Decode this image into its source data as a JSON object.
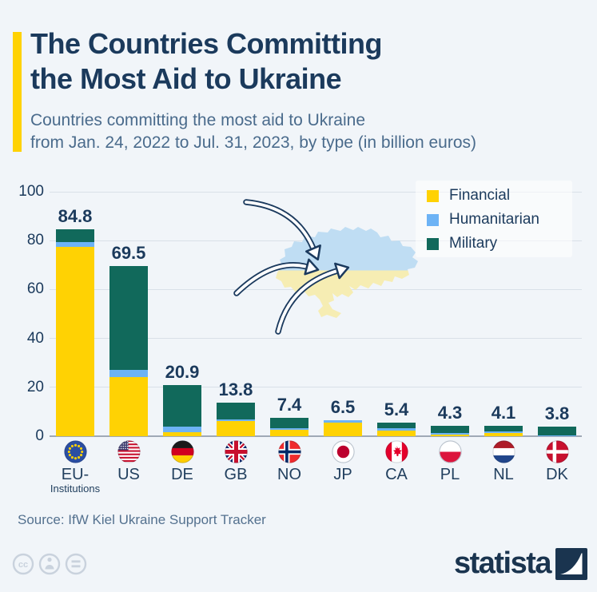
{
  "header": {
    "title_line1": "The Countries Committing",
    "title_line2": "the Most Aid to Ukraine",
    "subtitle_line1": "Countries committing the most aid to Ukraine",
    "subtitle_line2": "from Jan. 24, 2022 to Jul. 31, 2023, by type (in billion euros)"
  },
  "chart_data": {
    "type": "bar",
    "stacked": true,
    "title": "Countries committing the most aid to Ukraine from Jan. 24, 2022 to Jul. 31, 2023, by type (in billion euros)",
    "unit": "billion euros",
    "categories": [
      {
        "label": "EU-",
        "sublabel": "Institutions",
        "flag": "eu"
      },
      {
        "label": "US",
        "sublabel": "",
        "flag": "us"
      },
      {
        "label": "DE",
        "sublabel": "",
        "flag": "de"
      },
      {
        "label": "GB",
        "sublabel": "",
        "flag": "gb"
      },
      {
        "label": "NO",
        "sublabel": "",
        "flag": "no"
      },
      {
        "label": "JP",
        "sublabel": "",
        "flag": "jp"
      },
      {
        "label": "CA",
        "sublabel": "",
        "flag": "ca"
      },
      {
        "label": "PL",
        "sublabel": "",
        "flag": "pl"
      },
      {
        "label": "NL",
        "sublabel": "",
        "flag": "nl"
      },
      {
        "label": "DK",
        "sublabel": "",
        "flag": "dk"
      }
    ],
    "totals": [
      84.8,
      69.5,
      20.9,
      13.8,
      7.4,
      6.5,
      5.4,
      4.3,
      4.1,
      3.8
    ],
    "series": [
      {
        "name": "Financial",
        "color": "#FFD203",
        "values": [
          77.3,
          24.1,
          1.6,
          6.2,
          2.6,
          5.5,
          2.3,
          0.7,
          1.3,
          0
        ]
      },
      {
        "name": "Humanitarian",
        "color": "#6DB3F5",
        "values": [
          2.1,
          3.1,
          2.3,
          0.6,
          0.8,
          1.0,
          1.1,
          0.7,
          0.7,
          0.4
        ]
      },
      {
        "name": "Military",
        "color": "#11695B",
        "values": [
          5.4,
          42.3,
          17.0,
          7.0,
          4.0,
          0,
          2.0,
          2.9,
          2.1,
          3.4
        ]
      }
    ],
    "y_ticks": [
      0,
      20,
      40,
      60,
      80,
      100
    ],
    "ylim": [
      0,
      100
    ],
    "grid": true,
    "legend_position": "top-right"
  },
  "footer": {
    "source": "Source: IfW Kiel Ukraine Support Tracker",
    "brand_text": "statista"
  },
  "icons": {
    "map_illustration": "ukraine-map-with-aid-arrows",
    "license_icons": [
      "cc-icon",
      "attribution-person-icon",
      "equals-icon"
    ],
    "brand_icon": "statista-logo"
  },
  "colors": {
    "background": "#F1F5F9",
    "title": "#1B3A5C",
    "subtitle": "#4A6B8C",
    "accent_bar": "#FFD203",
    "grid": "#D9E0E8",
    "axis": "#9FA9B6",
    "map_blue": "#BFDDF3",
    "map_yellow": "#F6EDB3",
    "arrow": "#1B3A5E",
    "source_text": "#54718F",
    "license_gray": "#C9D2DD",
    "brand_navy": "#1A344F"
  }
}
